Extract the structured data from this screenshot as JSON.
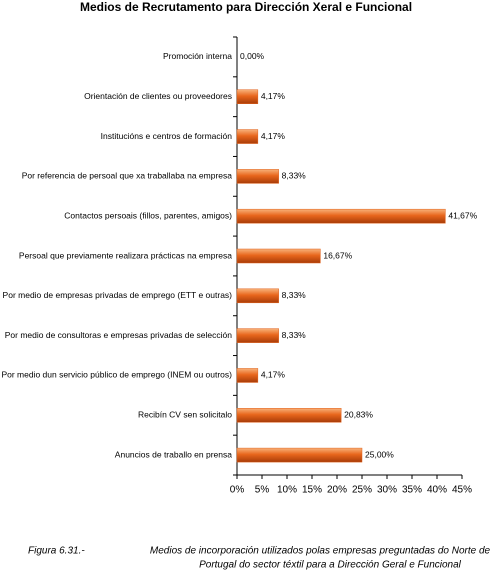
{
  "chart_data": {
    "type": "barh",
    "title": "Medios de Recrutamento para Dirección Xeral e Funcional",
    "categories": [
      "Promoción interna",
      "Orientación de clientes ou proveedores",
      "Institucións e centros de formación",
      "Por referencia de persoal que xa traballaba na empresa",
      "Contactos persoais (fillos, parentes, amigos)",
      "Persoal que previamente realizara prácticas na empresa",
      "Por medio de empresas privadas de emprego (ETT e outras)",
      "Por medio de consultoras e empresas privadas de selección",
      "Por medio dun servicio público de emprego (INEM ou outros)",
      "Recibín CV sen solicitalo",
      "Anuncios de traballo en prensa"
    ],
    "values": [
      0,
      4.17,
      4.17,
      8.33,
      41.67,
      16.67,
      8.33,
      8.33,
      4.17,
      20.83,
      25
    ],
    "value_labels": [
      "0,00%",
      "4,17%",
      "4,17%",
      "8,33%",
      "41,67%",
      "16,67%",
      "8,33%",
      "8,33%",
      "4,17%",
      "20,83%",
      "25,00%"
    ],
    "color": "#e0601a",
    "xlim": [
      0,
      45
    ],
    "xticks": [
      {
        "value": 0,
        "label": "0%"
      },
      {
        "value": 5,
        "label": "5%"
      },
      {
        "value": 10,
        "label": "10%"
      },
      {
        "value": 15,
        "label": "15%"
      },
      {
        "value": 20,
        "label": "20%"
      },
      {
        "value": 25,
        "label": "25%"
      },
      {
        "value": 30,
        "label": "30%"
      },
      {
        "value": 35,
        "label": "35%"
      },
      {
        "value": 40,
        "label": "40%"
      },
      {
        "value": 45,
        "label": "45%"
      }
    ],
    "caption_label": "Figura 6.31.-",
    "caption_lines": [
      "Medios de incorporación utilizados polas empresas preguntadas do Norte de",
      "Portugal do sector téxtil para a Dirección Geral e Funcional"
    ]
  }
}
